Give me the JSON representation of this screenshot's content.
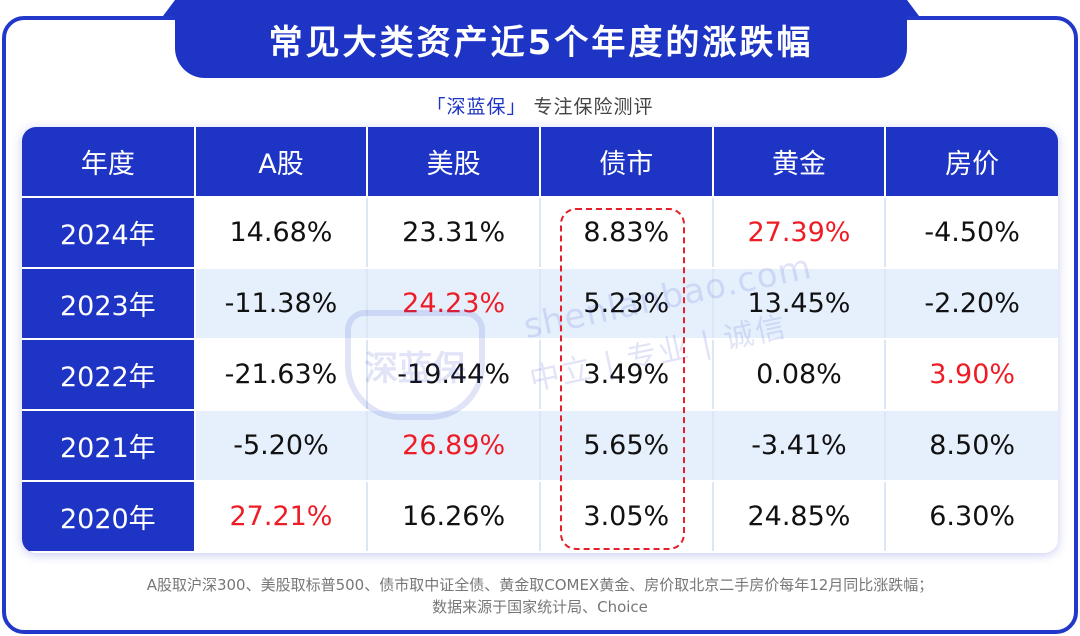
{
  "title": "常见大类资产近5个年度的涨跌幅",
  "brand": {
    "name": "「深蓝保」",
    "tagline": "专注保险测评"
  },
  "table": {
    "headers": [
      "年度",
      "A股",
      "美股",
      "债市",
      "黄金",
      "房价"
    ],
    "rows": [
      {
        "year": "2024年",
        "values": [
          "14.68%",
          "23.31%",
          "8.83%",
          "27.39%",
          "-4.50%"
        ],
        "red": [
          false,
          false,
          false,
          true,
          false
        ]
      },
      {
        "year": "2023年",
        "values": [
          "-11.38%",
          "24.23%",
          "5.23%",
          "13.45%",
          "-2.20%"
        ],
        "red": [
          false,
          true,
          false,
          false,
          false
        ]
      },
      {
        "year": "2022年",
        "values": [
          "-21.63%",
          "-19.44%",
          "3.49%",
          "0.08%",
          "3.90%"
        ],
        "red": [
          false,
          false,
          false,
          false,
          true
        ]
      },
      {
        "year": "2021年",
        "values": [
          "-5.20%",
          "26.89%",
          "5.65%",
          "-3.41%",
          "8.50%"
        ],
        "red": [
          false,
          true,
          false,
          false,
          false
        ]
      },
      {
        "year": "2020年",
        "values": [
          "27.21%",
          "16.26%",
          "3.05%",
          "24.85%",
          "6.30%"
        ],
        "red": [
          true,
          false,
          false,
          false,
          false
        ]
      }
    ],
    "highlight_column": "债市",
    "highlight_color": "#e5202a",
    "header_color": "#1e34c4",
    "positive_highlight_color": "#ee1c25"
  },
  "watermark": {
    "badge": "深蓝保",
    "url": "shenlanbao.com",
    "slogan": "中立 | 专业 | 诚信"
  },
  "footnote": {
    "line1": "A股取沪深300、美股取标普500、债市取中证全债、黄金取COMEX黄金、房价取北京二手房价每年12月同比涨跌幅；",
    "line2": "数据来源于国家统计局、Choice"
  }
}
